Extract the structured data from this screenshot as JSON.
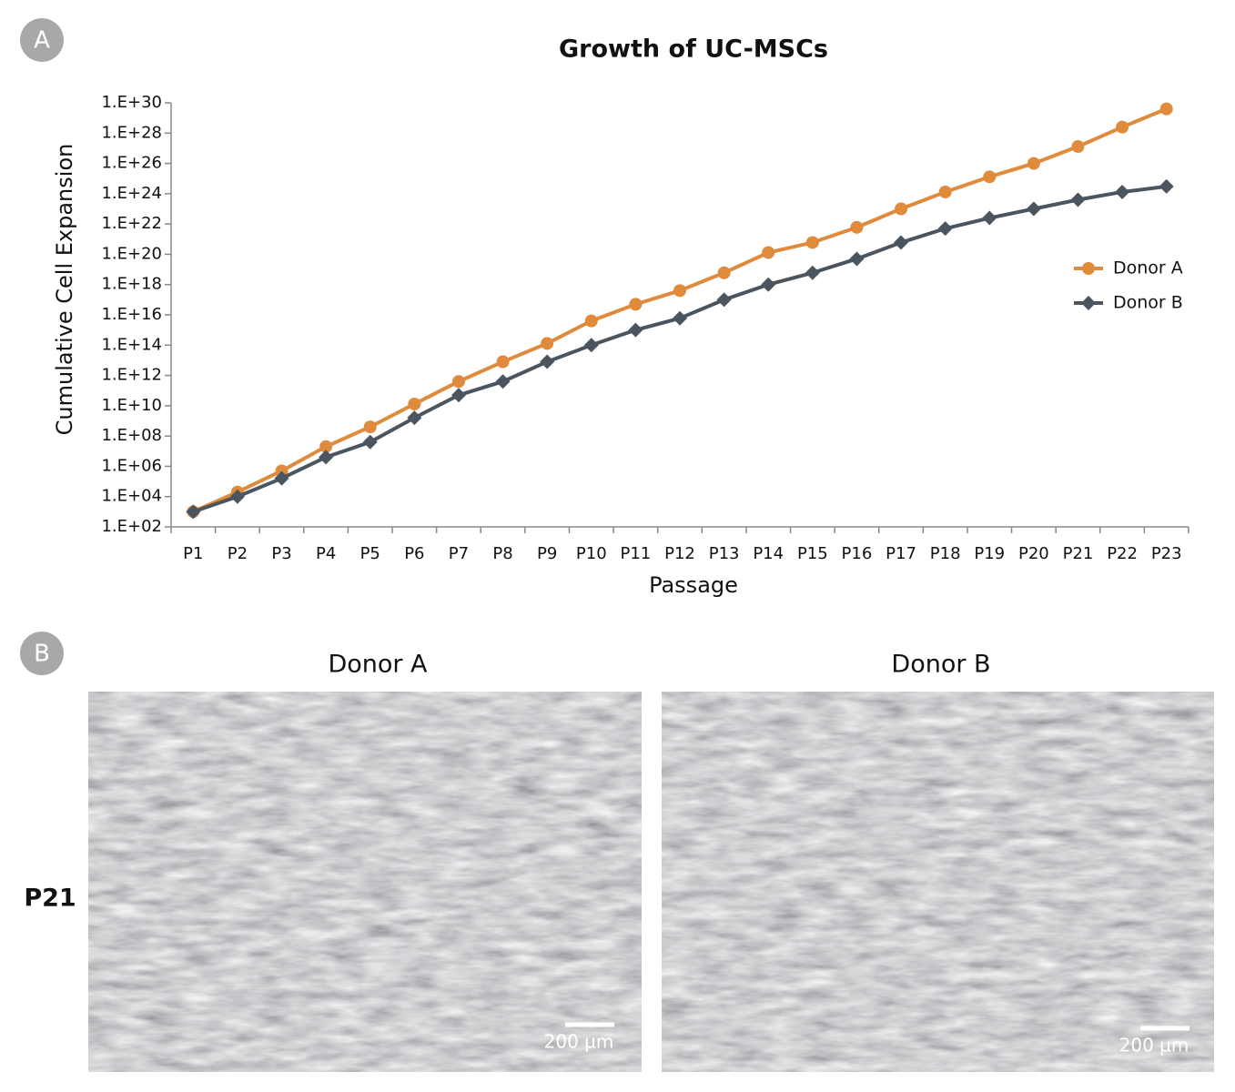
{
  "chart_data": {
    "type": "line",
    "title": "Growth of UC-MSCs",
    "xlabel": "Passage",
    "ylabel": "Cumulative Cell Expansion",
    "categories": [
      "P1",
      "P2",
      "P3",
      "P4",
      "P5",
      "P6",
      "P7",
      "P8",
      "P9",
      "P10",
      "P11",
      "P12",
      "P13",
      "P14",
      "P15",
      "P16",
      "P17",
      "P18",
      "P19",
      "P20",
      "P21",
      "P22",
      "P23"
    ],
    "series": [
      {
        "name": "Donor A",
        "color": "#e08a3c",
        "marker": "circle",
        "values": [
          1000.0,
          20000.0,
          500000.0,
          20000000.0,
          400000000.0,
          13000000000.0,
          400000000000.0,
          8000000000000.0,
          130000000000000.0,
          4000000000000000.0,
          5e+16,
          4e+17,
          6e+18,
          1.3e+20,
          6e+20,
          6e+21,
          1e+23,
          1.3e+24,
          1.3e+25,
          1e+26,
          1.3e+27,
          2.5e+28,
          4e+29
        ]
      },
      {
        "name": "Donor B",
        "color": "#4a5560",
        "marker": "diamond",
        "values": [
          1000.0,
          10000.0,
          160000.0,
          4000000.0,
          40000000.0,
          1600000000.0,
          50000000000.0,
          400000000000.0,
          8000000000000.0,
          100000000000000.0,
          1000000000000000.0,
          6000000000000000.0,
          1e+17,
          1e+18,
          6e+18,
          5e+19,
          6e+20,
          5e+21,
          2.5e+22,
          1e+23,
          4e+23,
          1.3e+24,
          3e+24
        ]
      }
    ],
    "ylog": true,
    "ylim": [
      100.0,
      1e+30
    ],
    "yticks": [
      {
        "value": 100.0,
        "label": "1.E+02"
      },
      {
        "value": 10000.0,
        "label": "1.E+04"
      },
      {
        "value": 1000000.0,
        "label": "1.E+06"
      },
      {
        "value": 100000000.0,
        "label": "1.E+08"
      },
      {
        "value": 10000000000.0,
        "label": "1.E+10"
      },
      {
        "value": 1000000000000.0,
        "label": "1.E+12"
      },
      {
        "value": 100000000000000.0,
        "label": "1.E+14"
      },
      {
        "value": 1e+16,
        "label": "1.E+16"
      },
      {
        "value": 1e+18,
        "label": "1.E+18"
      },
      {
        "value": 1e+20,
        "label": "1.E+20"
      },
      {
        "value": 1e+22,
        "label": "1.E+22"
      },
      {
        "value": 1e+24,
        "label": "1.E+24"
      },
      {
        "value": 1e+26,
        "label": "1.E+26"
      },
      {
        "value": 1e+28,
        "label": "1.E+28"
      },
      {
        "value": 1e+30,
        "label": "1.E+30"
      }
    ],
    "grid": false,
    "legend": "right"
  },
  "panels": {
    "label_a": "A",
    "label_b": "B",
    "columns": [
      "Donor A",
      "Donor B"
    ],
    "row_label": "P21",
    "scale_bar": "200 µm"
  }
}
